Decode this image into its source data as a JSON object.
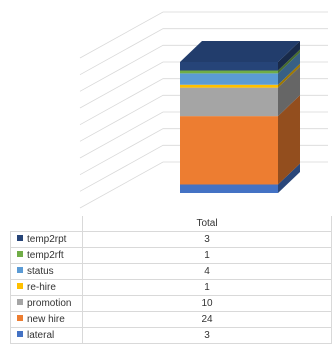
{
  "chart_data": {
    "type": "bar",
    "stacked": true,
    "three_d": true,
    "categories": [
      "Total"
    ],
    "series": [
      {
        "name": "lateral",
        "values": [
          3
        ],
        "color": "#4472c4"
      },
      {
        "name": "new hire",
        "values": [
          24
        ],
        "color": "#ed7d31"
      },
      {
        "name": "promotion",
        "values": [
          10
        ],
        "color": "#a5a5a5"
      },
      {
        "name": "re-hire",
        "values": [
          1
        ],
        "color": "#ffc000"
      },
      {
        "name": "status",
        "values": [
          4
        ],
        "color": "#5b9bd5"
      },
      {
        "name": "temp2rft",
        "values": [
          1
        ],
        "color": "#70ad47"
      },
      {
        "name": "temp2rpt",
        "values": [
          3
        ],
        "color": "#264478"
      }
    ],
    "table_row_order": [
      "temp2rpt",
      "temp2rft",
      "status",
      "re-hire",
      "promotion",
      "new hire",
      "lateral"
    ],
    "grid": true,
    "legend": "data table"
  },
  "table": {
    "header": "Total",
    "rows": [
      {
        "label": "temp2rpt",
        "value": "3",
        "color": "#264478"
      },
      {
        "label": "temp2rft",
        "value": "1",
        "color": "#70ad47"
      },
      {
        "label": "status",
        "value": "4",
        "color": "#5b9bd5"
      },
      {
        "label": "re-hire",
        "value": "1",
        "color": "#ffc000"
      },
      {
        "label": "promotion",
        "value": "10",
        "color": "#a5a5a5"
      },
      {
        "label": "new hire",
        "value": "24",
        "color": "#ed7d31"
      },
      {
        "label": "lateral",
        "value": "3",
        "color": "#4472c4"
      }
    ]
  }
}
